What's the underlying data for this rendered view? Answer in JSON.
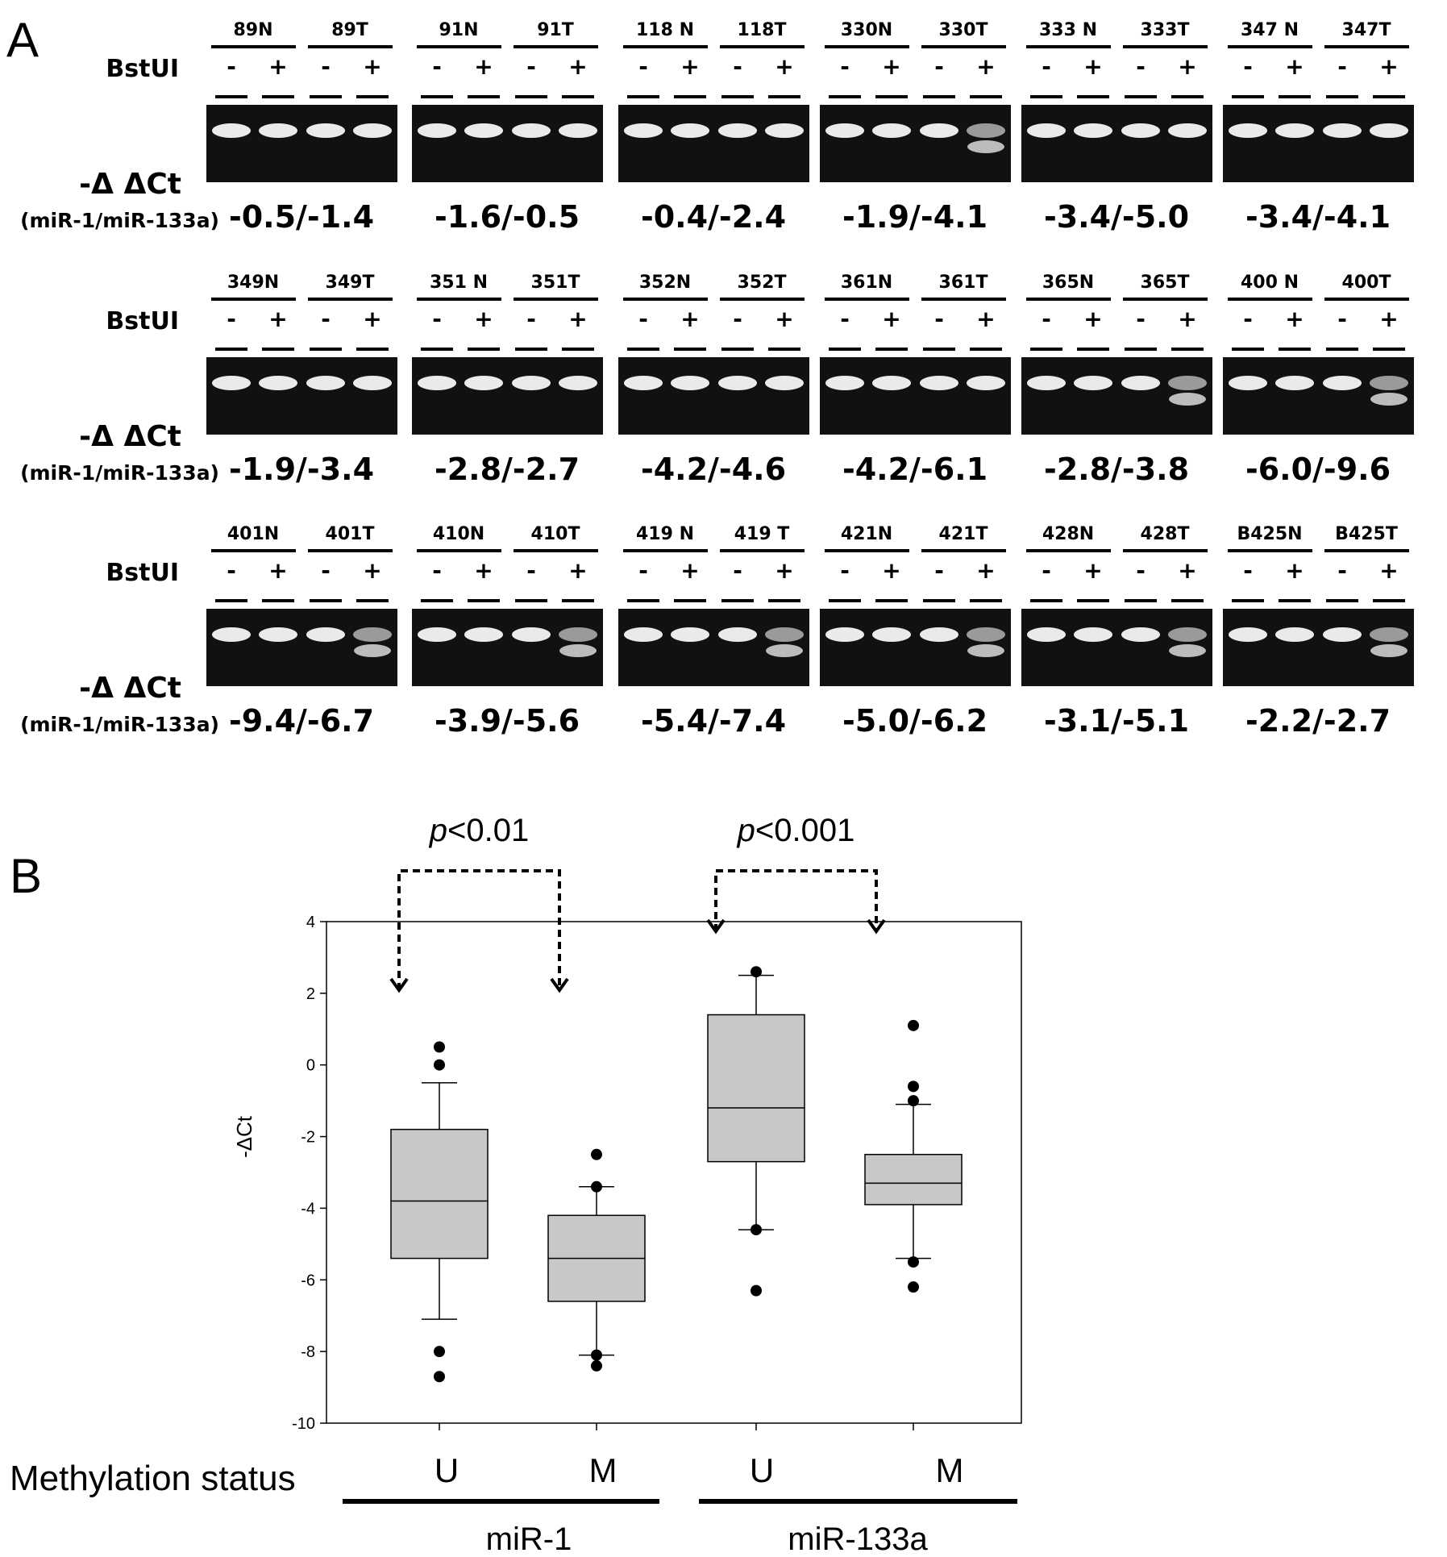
{
  "panel_a": {
    "label": "A",
    "enzyme_label": "BstUI",
    "ratio_label": {
      "prefix": "-Δ ΔCt",
      "sub": "(miR-1/miR-133a)"
    },
    "lanes": {
      "minus": "-",
      "plus": "+"
    },
    "rows": [
      {
        "samples": [
          {
            "n": "89N",
            "t": "89T",
            "value": "-0.5/-1.4",
            "t_digested": false
          },
          {
            "n": "91N",
            "t": "91T",
            "value": "-1.6/-0.5",
            "t_digested": false
          },
          {
            "n": "118 N",
            "t": "118T",
            "value": "-0.4/-2.4",
            "t_digested": false
          },
          {
            "n": "330N",
            "t": "330T",
            "value": "-1.9/-4.1",
            "t_digested": true
          },
          {
            "n": "333 N",
            "t": "333T",
            "value": "-3.4/-5.0",
            "t_digested": false
          },
          {
            "n": "347 N",
            "t": "347T",
            "value": "-3.4/-4.1",
            "t_digested": false
          }
        ]
      },
      {
        "samples": [
          {
            "n": "349N",
            "t": "349T",
            "value": "-1.9/-3.4",
            "t_digested": false
          },
          {
            "n": "351 N",
            "t": "351T",
            "value": "-2.8/-2.7",
            "t_digested": false
          },
          {
            "n": "352N",
            "t": "352T",
            "value": "-4.2/-4.6",
            "t_digested": false
          },
          {
            "n": "361N",
            "t": "361T",
            "value": "-4.2/-6.1",
            "t_digested": false
          },
          {
            "n": "365N",
            "t": "365T",
            "value": "-2.8/-3.8",
            "t_digested": true
          },
          {
            "n": "400 N",
            "t": "400T",
            "value": "-6.0/-9.6",
            "t_digested": true
          }
        ]
      },
      {
        "samples": [
          {
            "n": "401N",
            "t": "401T",
            "value": "-9.4/-6.7",
            "t_digested": true
          },
          {
            "n": "410N",
            "t": "410T",
            "value": "-3.9/-5.6",
            "t_digested": true
          },
          {
            "n": "419 N",
            "t": "419 T",
            "value": "-5.4/-7.4",
            "t_digested": true
          },
          {
            "n": "421N",
            "t": "421T",
            "value": "-5.0/-6.2",
            "t_digested": true
          },
          {
            "n": "428N",
            "t": "428T",
            "value": "-3.1/-5.1",
            "t_digested": true
          },
          {
            "n": "B425N",
            "t": "B425T",
            "value": "-2.2/-2.7",
            "t_digested": true
          }
        ]
      }
    ]
  },
  "panel_b": {
    "label": "B",
    "row_label": "Methylation status",
    "chart_data": {
      "type": "box",
      "ylabel": "-ΔCt",
      "ylim": [
        -10,
        4
      ],
      "yticks": [
        "4",
        "2",
        "0",
        "-2",
        "-4",
        "-6",
        "-8",
        "-10"
      ],
      "categories": [
        "U",
        "M",
        "U",
        "M"
      ],
      "groups": [
        "miR-1",
        "miR-133a"
      ],
      "boxes": [
        {
          "group": "miR-1",
          "status": "U",
          "q1": -5.4,
          "median": -3.8,
          "q3": -1.8,
          "whisker_low": -7.1,
          "whisker_high": -0.5,
          "outliers": [
            0.5,
            0.0,
            -8.0,
            -8.7
          ]
        },
        {
          "group": "miR-1",
          "status": "M",
          "q1": -6.6,
          "median": -5.4,
          "q3": -4.2,
          "whisker_low": -8.1,
          "whisker_high": -3.4,
          "outliers": [
            -2.5,
            -3.4,
            -8.1,
            -8.4
          ]
        },
        {
          "group": "miR-133a",
          "status": "U",
          "q1": -2.7,
          "median": -1.2,
          "q3": 1.4,
          "whisker_low": -4.6,
          "whisker_high": 2.5,
          "outliers": [
            2.6,
            -4.6,
            -6.3
          ]
        },
        {
          "group": "miR-133a",
          "status": "M",
          "q1": -3.9,
          "median": -3.3,
          "q3": -2.5,
          "whisker_low": -5.4,
          "whisker_high": -1.1,
          "outliers": [
            1.1,
            -0.6,
            -1.0,
            -5.5,
            -6.2
          ]
        }
      ],
      "comparisons": [
        {
          "group": "miR-1",
          "p_italic": "p",
          "p_rest": "<0.01"
        },
        {
          "group": "miR-133a",
          "p_italic": "p",
          "p_rest": "<0.001"
        }
      ],
      "colors": {
        "box_fill": "#c8c8c8",
        "line": "#000000"
      }
    }
  }
}
